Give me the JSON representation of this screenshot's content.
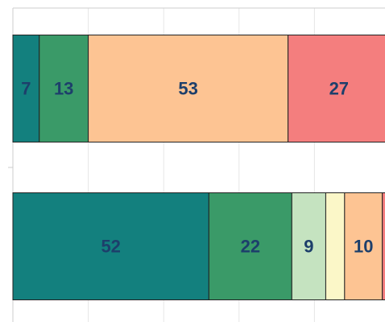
{
  "chart_data": {
    "type": "stacked_barh",
    "categories": [
      null,
      null
    ],
    "series": [
      {
        "color": "#13807e",
        "values": [
          7,
          52
        ]
      },
      {
        "color": "#3a9a68",
        "values": [
          13,
          22
        ]
      },
      {
        "color": "#c5e3c0",
        "values": [
          0,
          9
        ]
      },
      {
        "color": "#fbf7c8",
        "values": [
          0,
          5
        ]
      },
      {
        "color": "#fdc493",
        "values": [
          53,
          10
        ]
      },
      {
        "color": "#f47e7e",
        "values": [
          27,
          2
        ]
      }
    ],
    "xlim": [
      0,
      100
    ],
    "xticks": [
      0,
      20,
      40,
      60,
      80,
      100
    ],
    "grid": true
  }
}
